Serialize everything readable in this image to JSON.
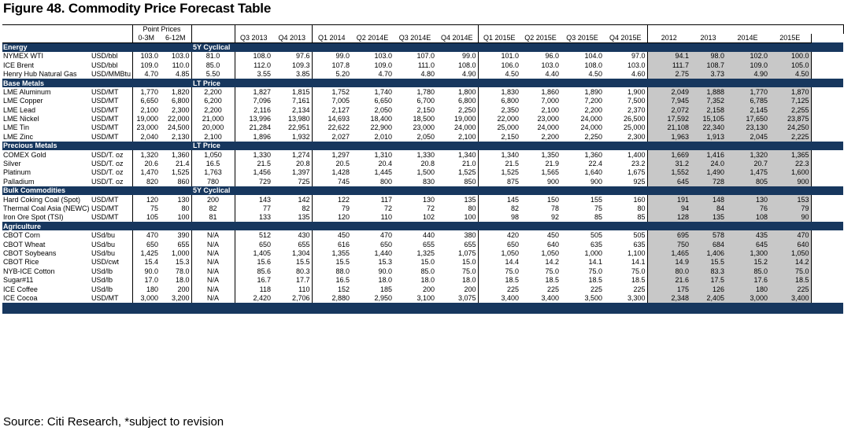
{
  "title": "Figure 48. Commodity Price Forecast Table",
  "source": "Source: Citi Research, *subject to revision",
  "header": {
    "point_prices": "Point Prices",
    "sub": [
      "0-3M",
      "6-12M"
    ],
    "quarters": [
      "Q3 2013",
      "Q4 2013",
      "Q1 2014",
      "Q2 2014E",
      "Q3 2014E",
      "Q4 2014E",
      "Q1 2015E",
      "Q2 2015E",
      "Q3 2015E",
      "Q4 2015E"
    ],
    "years": [
      "2012",
      "2013",
      "2014E",
      "2015E"
    ]
  },
  "sections": [
    {
      "name": "Energy",
      "label": "5Y Cyclical",
      "rows": [
        {
          "name": "NYMEX WTI",
          "unit": "USD/bbl",
          "p": [
            "103.0",
            "103.0"
          ],
          "lt": "81.0",
          "q": [
            "108.0",
            "97.6",
            "99.0",
            "103.0",
            "107.0",
            "99.0",
            "101.0",
            "96.0",
            "104.0",
            "97.0"
          ],
          "y": [
            "94.1",
            "98.0",
            "102.0",
            "100.0"
          ]
        },
        {
          "name": "ICE Brent",
          "unit": "USD/bbl",
          "p": [
            "109.0",
            "110.0"
          ],
          "lt": "85.0",
          "q": [
            "112.0",
            "109.3",
            "107.8",
            "109.0",
            "111.0",
            "108.0",
            "106.0",
            "103.0",
            "108.0",
            "103.0"
          ],
          "y": [
            "111.7",
            "108.7",
            "109.0",
            "105.0"
          ]
        },
        {
          "name": "Henry Hub Natural Gas",
          "unit": "USD/MMBtu",
          "p": [
            "4.70",
            "4.85"
          ],
          "lt": "5.50",
          "q": [
            "3.55",
            "3.85",
            "5.20",
            "4.70",
            "4.80",
            "4.90",
            "4.50",
            "4.40",
            "4.50",
            "4.60"
          ],
          "y": [
            "2.75",
            "3.73",
            "4.90",
            "4.50"
          ]
        }
      ]
    },
    {
      "name": "Base Metals",
      "label": "LT Price",
      "rows": [
        {
          "name": "LME Aluminum",
          "unit": "USD/MT",
          "p": [
            "1,770",
            "1,820"
          ],
          "lt": "2,200",
          "q": [
            "1,827",
            "1,815",
            "1,752",
            "1,740",
            "1,780",
            "1,800",
            "1,830",
            "1,860",
            "1,890",
            "1,900"
          ],
          "y": [
            "2,049",
            "1,888",
            "1,770",
            "1,870"
          ]
        },
        {
          "name": "LME Copper",
          "unit": "USD/MT",
          "p": [
            "6,650",
            "6,800"
          ],
          "lt": "6,200",
          "q": [
            "7,096",
            "7,161",
            "7,005",
            "6,650",
            "6,700",
            "6,800",
            "6,800",
            "7,000",
            "7,200",
            "7,500"
          ],
          "y": [
            "7,945",
            "7,352",
            "6,785",
            "7,125"
          ]
        },
        {
          "name": "LME Lead",
          "unit": "USD/MT",
          "p": [
            "2,100",
            "2,300"
          ],
          "lt": "2,200",
          "q": [
            "2,116",
            "2,134",
            "2,127",
            "2,050",
            "2,150",
            "2,250",
            "2,350",
            "2,100",
            "2,200",
            "2,370"
          ],
          "y": [
            "2,072",
            "2,158",
            "2,145",
            "2,255"
          ]
        },
        {
          "name": "LME Nickel",
          "unit": "USD/MT",
          "p": [
            "19,000",
            "22,000"
          ],
          "lt": "21,000",
          "q": [
            "13,996",
            "13,980",
            "14,693",
            "18,400",
            "18,500",
            "19,000",
            "22,000",
            "23,000",
            "24,000",
            "26,500"
          ],
          "y": [
            "17,592",
            "15,105",
            "17,650",
            "23,875"
          ]
        },
        {
          "name": "LME Tin",
          "unit": "USD/MT",
          "p": [
            "23,000",
            "24,500"
          ],
          "lt": "20,000",
          "q": [
            "21,284",
            "22,951",
            "22,622",
            "22,900",
            "23,000",
            "24,000",
            "25,000",
            "24,000",
            "24,000",
            "25,000"
          ],
          "y": [
            "21,108",
            "22,340",
            "23,130",
            "24,250"
          ]
        },
        {
          "name": "LME Zinc",
          "unit": "USD/MT",
          "p": [
            "2,040",
            "2,130"
          ],
          "lt": "2,100",
          "q": [
            "1,896",
            "1,932",
            "2,027",
            "2,010",
            "2,050",
            "2,100",
            "2,150",
            "2,200",
            "2,250",
            "2,300"
          ],
          "y": [
            "1,963",
            "1,913",
            "2,045",
            "2,225"
          ]
        }
      ]
    },
    {
      "name": "Precious Metals",
      "label": "LT Price",
      "rows": [
        {
          "name": "COMEX Gold",
          "unit": "USD/T. oz",
          "p": [
            "1,320",
            "1,360"
          ],
          "lt": "1,050",
          "q": [
            "1,330",
            "1,274",
            "1,297",
            "1,310",
            "1,330",
            "1,340",
            "1,340",
            "1,350",
            "1,360",
            "1,400"
          ],
          "y": [
            "1,669",
            "1,416",
            "1,320",
            "1,365"
          ]
        },
        {
          "name": "Silver",
          "unit": "USD/T. oz",
          "p": [
            "20.6",
            "21.4"
          ],
          "lt": "16.5",
          "q": [
            "21.5",
            "20.8",
            "20.5",
            "20.4",
            "20.8",
            "21.0",
            "21.5",
            "21.9",
            "22.4",
            "23.2"
          ],
          "y": [
            "31.2",
            "24.0",
            "20.7",
            "22.3"
          ]
        },
        {
          "name": "Platinum",
          "unit": "USD/T. oz",
          "p": [
            "1,470",
            "1,525"
          ],
          "lt": "1,763",
          "q": [
            "1,456",
            "1,397",
            "1,428",
            "1,445",
            "1,500",
            "1,525",
            "1,525",
            "1,565",
            "1,640",
            "1,675"
          ],
          "y": [
            "1,552",
            "1,490",
            "1,475",
            "1,600"
          ]
        },
        {
          "name": "Palladium",
          "unit": "USD/T. oz",
          "p": [
            "820",
            "860"
          ],
          "lt": "780",
          "q": [
            "729",
            "725",
            "745",
            "800",
            "830",
            "850",
            "875",
            "900",
            "900",
            "925"
          ],
          "y": [
            "645",
            "728",
            "805",
            "900"
          ]
        }
      ]
    },
    {
      "name": "Bulk Commodities",
      "label": "5Y Cyclical",
      "rows": [
        {
          "name": "Hard Coking Coal (Spot)",
          "unit": "USD/MT",
          "p": [
            "120",
            "130"
          ],
          "lt": "200",
          "q": [
            "143",
            "142",
            "122",
            "117",
            "130",
            "135",
            "145",
            "150",
            "155",
            "160"
          ],
          "y": [
            "191",
            "148",
            "130",
            "153"
          ]
        },
        {
          "name": "Thermal Coal Asia (NEWC)",
          "unit": "USD/MT",
          "p": [
            "75",
            "80"
          ],
          "lt": "82",
          "q": [
            "77",
            "82",
            "79",
            "72",
            "72",
            "80",
            "82",
            "78",
            "75",
            "80"
          ],
          "y": [
            "94",
            "84",
            "76",
            "79"
          ]
        },
        {
          "name": "Iron Ore Spot (TSI)",
          "unit": "USD/MT",
          "p": [
            "105",
            "100"
          ],
          "lt": "81",
          "q": [
            "133",
            "135",
            "120",
            "110",
            "102",
            "100",
            "98",
            "92",
            "85",
            "85"
          ],
          "y": [
            "128",
            "135",
            "108",
            "90"
          ]
        }
      ]
    },
    {
      "name": "Agriculture",
      "label": "",
      "rows": [
        {
          "name": "CBOT Corn",
          "unit": "USd/bu",
          "p": [
            "470",
            "390"
          ],
          "lt": "N/A",
          "q": [
            "512",
            "430",
            "450",
            "470",
            "440",
            "380",
            "420",
            "450",
            "505",
            "505"
          ],
          "y": [
            "695",
            "578",
            "435",
            "470"
          ]
        },
        {
          "name": "CBOT Wheat",
          "unit": "USd/bu",
          "p": [
            "650",
            "655"
          ],
          "lt": "N/A",
          "q": [
            "650",
            "655",
            "616",
            "650",
            "655",
            "655",
            "650",
            "640",
            "635",
            "635"
          ],
          "y": [
            "750",
            "684",
            "645",
            "640"
          ]
        },
        {
          "name": "CBOT Soybeans",
          "unit": "USd/bu",
          "p": [
            "1,425",
            "1,000"
          ],
          "lt": "N/A",
          "q": [
            "1,405",
            "1,304",
            "1,355",
            "1,440",
            "1,325",
            "1,075",
            "1,050",
            "1,050",
            "1,000",
            "1,100"
          ],
          "y": [
            "1,465",
            "1,406",
            "1,300",
            "1,050"
          ]
        },
        {
          "name": "CBOT Rice",
          "unit": "USD/cwt",
          "p": [
            "15.4",
            "15.3"
          ],
          "lt": "N/A",
          "q": [
            "15.6",
            "15.5",
            "15.5",
            "15.3",
            "15.0",
            "15.0",
            "14.4",
            "14.2",
            "14.1",
            "14.1"
          ],
          "y": [
            "14.9",
            "15.5",
            "15.2",
            "14.2"
          ]
        },
        {
          "name": "NYB-ICE Cotton",
          "unit": "USd/lb",
          "p": [
            "90.0",
            "78.0"
          ],
          "lt": "N/A",
          "q": [
            "85.6",
            "80.3",
            "88.0",
            "90.0",
            "85.0",
            "75.0",
            "75.0",
            "75.0",
            "75.0",
            "75.0"
          ],
          "y": [
            "80.0",
            "83.3",
            "85.0",
            "75.0"
          ]
        },
        {
          "name": "Sugar#11",
          "unit": "USd/lb",
          "p": [
            "17.0",
            "18.0"
          ],
          "lt": "N/A",
          "q": [
            "16.7",
            "17.7",
            "16.5",
            "18.0",
            "18.0",
            "18.0",
            "18.5",
            "18.5",
            "18.5",
            "18.5"
          ],
          "y": [
            "21.6",
            "17.5",
            "17.6",
            "18.5"
          ]
        },
        {
          "name": "ICE Coffee",
          "unit": "USd/lb",
          "p": [
            "180",
            "200"
          ],
          "lt": "N/A",
          "q": [
            "118",
            "110",
            "152",
            "185",
            "200",
            "200",
            "225",
            "225",
            "225",
            "225"
          ],
          "y": [
            "175",
            "126",
            "180",
            "225"
          ]
        },
        {
          "name": "ICE Cocoa",
          "unit": "USD/MT",
          "p": [
            "3,000",
            "3,200"
          ],
          "lt": "N/A",
          "q": [
            "2,420",
            "2,706",
            "2,880",
            "2,950",
            "3,100",
            "3,075",
            "3,400",
            "3,400",
            "3,500",
            "3,300"
          ],
          "y": [
            "2,348",
            "2,405",
            "3,000",
            "3,400"
          ]
        }
      ]
    }
  ]
}
